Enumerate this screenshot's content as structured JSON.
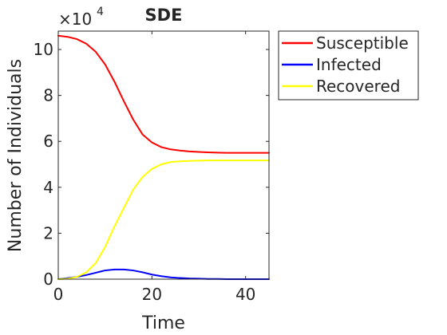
{
  "chart_data": {
    "type": "line",
    "title": "SDE",
    "xlabel": "Time",
    "ylabel": "Number of Individuals",
    "y_multiplier_base": "×10",
    "y_multiplier_exponent": "4",
    "xlim": [
      0,
      45
    ],
    "ylim": [
      0,
      10.8
    ],
    "y_scale_factor": 10000,
    "x_ticks": [
      0,
      20,
      40
    ],
    "y_ticks": [
      0,
      2,
      4,
      6,
      8,
      10
    ],
    "grid": false,
    "legend_position": "outside-top-right",
    "x": [
      0,
      2,
      4,
      6,
      8,
      10,
      12,
      14,
      16,
      18,
      20,
      22,
      24,
      26,
      28,
      30,
      32,
      34,
      36,
      38,
      40,
      42,
      44,
      45
    ],
    "series": [
      {
        "name": "Susceptible",
        "color": "#ff0000",
        "values": [
          10.6,
          10.55,
          10.45,
          10.25,
          9.9,
          9.35,
          8.6,
          7.75,
          6.95,
          6.3,
          5.95,
          5.75,
          5.65,
          5.6,
          5.56,
          5.54,
          5.52,
          5.51,
          5.5,
          5.5,
          5.5,
          5.5,
          5.5,
          5.5
        ]
      },
      {
        "name": "Infected",
        "color": "#0000ff",
        "values": [
          0.0,
          0.05,
          0.1,
          0.18,
          0.28,
          0.38,
          0.42,
          0.42,
          0.38,
          0.3,
          0.2,
          0.13,
          0.08,
          0.05,
          0.03,
          0.02,
          0.01,
          0.01,
          0.0,
          0.0,
          0.0,
          0.0,
          0.0,
          0.0
        ]
      },
      {
        "name": "Recovered",
        "color": "#ffff00",
        "values": [
          0.0,
          0.02,
          0.1,
          0.3,
          0.7,
          1.4,
          2.3,
          3.1,
          3.9,
          4.45,
          4.8,
          5.0,
          5.1,
          5.13,
          5.15,
          5.16,
          5.17,
          5.17,
          5.17,
          5.17,
          5.17,
          5.17,
          5.17,
          5.17
        ]
      }
    ]
  }
}
